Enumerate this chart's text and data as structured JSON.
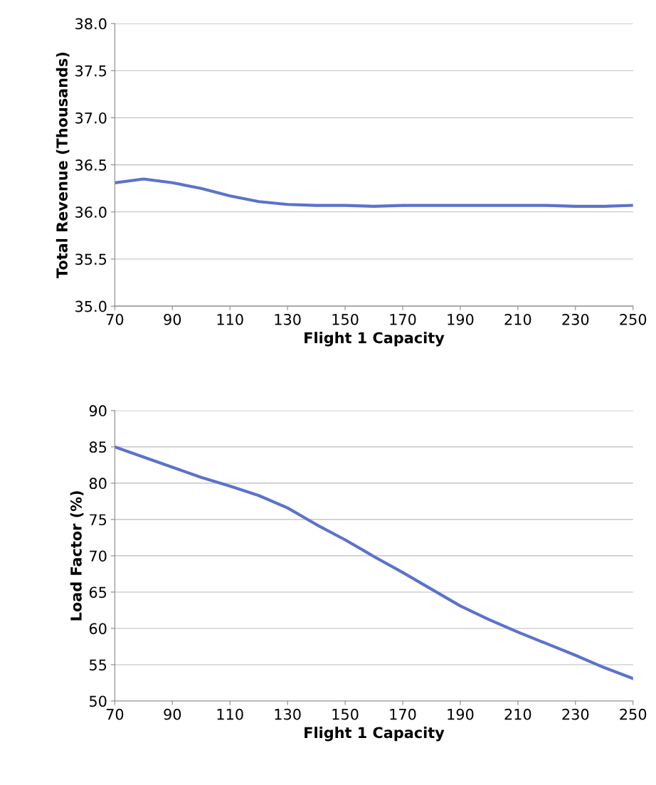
{
  "chart_data": [
    {
      "type": "line",
      "xlabel": "Flight 1 Capacity",
      "ylabel": "Total Revenue (Thousands)",
      "x": [
        70,
        80,
        90,
        100,
        110,
        120,
        130,
        140,
        150,
        160,
        170,
        180,
        190,
        200,
        210,
        220,
        230,
        240,
        250
      ],
      "series": [
        {
          "color": "#5b73c9",
          "values": [
            36.31,
            36.35,
            36.31,
            36.25,
            36.17,
            36.11,
            36.08,
            36.07,
            36.07,
            36.06,
            36.07,
            36.07,
            36.07,
            36.07,
            36.07,
            36.07,
            36.06,
            36.06,
            36.07
          ]
        }
      ],
      "xlim": [
        70,
        250
      ],
      "xticks": [
        70,
        90,
        110,
        130,
        150,
        170,
        190,
        210,
        230,
        250
      ],
      "ylim": [
        35.0,
        38.0
      ],
      "yticks": [
        {
          "value": 35.0,
          "label": "35.0"
        },
        {
          "value": 35.5,
          "label": "35.5"
        },
        {
          "value": 36.0,
          "label": "36.0"
        },
        {
          "value": 36.5,
          "label": "36.5"
        },
        {
          "value": 37.0,
          "label": "37.0"
        },
        {
          "value": 37.5,
          "label": "37.5"
        },
        {
          "value": 38.0,
          "label": "38.0"
        }
      ],
      "grid": "y"
    },
    {
      "type": "line",
      "xlabel": "Flight 1 Capacity",
      "ylabel": "Load Factor (%)",
      "x": [
        70,
        80,
        90,
        100,
        110,
        120,
        130,
        140,
        150,
        160,
        170,
        180,
        190,
        200,
        210,
        220,
        230,
        240,
        250
      ],
      "series": [
        {
          "color": "#5b73c9",
          "values": [
            85.0,
            83.6,
            82.2,
            80.8,
            79.6,
            78.3,
            76.6,
            74.3,
            72.2,
            69.9,
            67.7,
            65.4,
            63.1,
            61.2,
            59.5,
            57.9,
            56.3,
            54.6,
            53.1
          ]
        }
      ],
      "xlim": [
        70,
        250
      ],
      "xticks": [
        70,
        90,
        110,
        130,
        150,
        170,
        190,
        210,
        230,
        250
      ],
      "ylim": [
        50,
        90
      ],
      "yticks": [
        50,
        55,
        60,
        65,
        70,
        75,
        80,
        85,
        90
      ],
      "grid": "y"
    }
  ]
}
